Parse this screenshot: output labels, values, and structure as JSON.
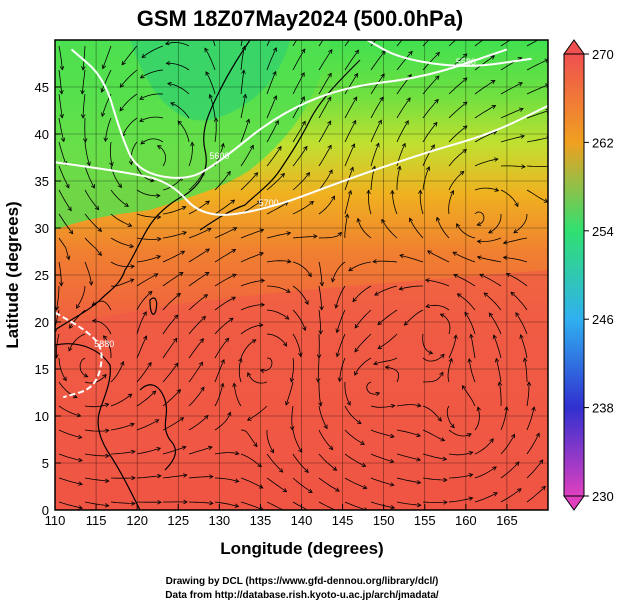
{
  "title": "GSM 18Z07May2024 (500.0hPa)",
  "xlabel": "Longitude (degrees)",
  "ylabel": "Latitude (degrees)",
  "credits": [
    "Drawing by DCL (https://www.gfd-dennou.org/library/dcl/)",
    "Data from http://database.rish.kyoto-u.ac.jp/arch/jmadata/"
  ],
  "chart_data": {
    "type": "heatmap",
    "x_range": [
      110,
      170
    ],
    "y_range": [
      0,
      50
    ],
    "x_ticks": [
      110,
      115,
      120,
      125,
      130,
      135,
      140,
      145,
      150,
      155,
      160,
      165
    ],
    "y_ticks": [
      0,
      5,
      10,
      15,
      20,
      25,
      30,
      35,
      40,
      45
    ],
    "x_tick_labels": [
      "110",
      "115",
      "120",
      "125",
      "130",
      "135",
      "140",
      "145",
      "150",
      "155",
      "160",
      "165"
    ],
    "y_tick_labels": [
      "0",
      "5",
      "10",
      "15",
      "20",
      "25",
      "30",
      "35",
      "40",
      "45"
    ],
    "colorbar": {
      "min": 230,
      "max": 270,
      "ticks": [
        230,
        238,
        246,
        254,
        262,
        270
      ],
      "tick_labels": [
        "230",
        "238",
        "246",
        "254",
        "262",
        "270"
      ],
      "colors": [
        "#e040c0",
        "#3030d0",
        "#30b0f0",
        "#30e070",
        "#f0a020",
        "#f05050"
      ]
    },
    "contours": [
      {
        "label": "5880",
        "points": [
          [
            110,
            21
          ],
          [
            114,
            19
          ],
          [
            116,
            17
          ],
          [
            115,
            13
          ],
          [
            111,
            12
          ]
        ]
      },
      {
        "label": "5700",
        "points": [
          [
            110,
            37
          ],
          [
            118,
            36
          ],
          [
            124,
            35
          ],
          [
            128,
            31
          ],
          [
            136,
            32
          ],
          [
            145,
            35
          ],
          [
            155,
            38
          ],
          [
            163,
            40
          ],
          [
            170,
            43
          ]
        ]
      },
      {
        "label": "5600",
        "points": [
          [
            112,
            49
          ],
          [
            116,
            46
          ],
          [
            118,
            40
          ],
          [
            120,
            36
          ],
          [
            126,
            35
          ],
          [
            130,
            37
          ],
          [
            137,
            42
          ],
          [
            145,
            45
          ],
          [
            155,
            46
          ],
          [
            165,
            49
          ]
        ]
      },
      {
        "label": "5580",
        "points": [
          [
            148,
            50
          ],
          [
            152,
            48
          ],
          [
            160,
            47
          ],
          [
            168,
            48
          ]
        ]
      }
    ],
    "grid": true
  }
}
